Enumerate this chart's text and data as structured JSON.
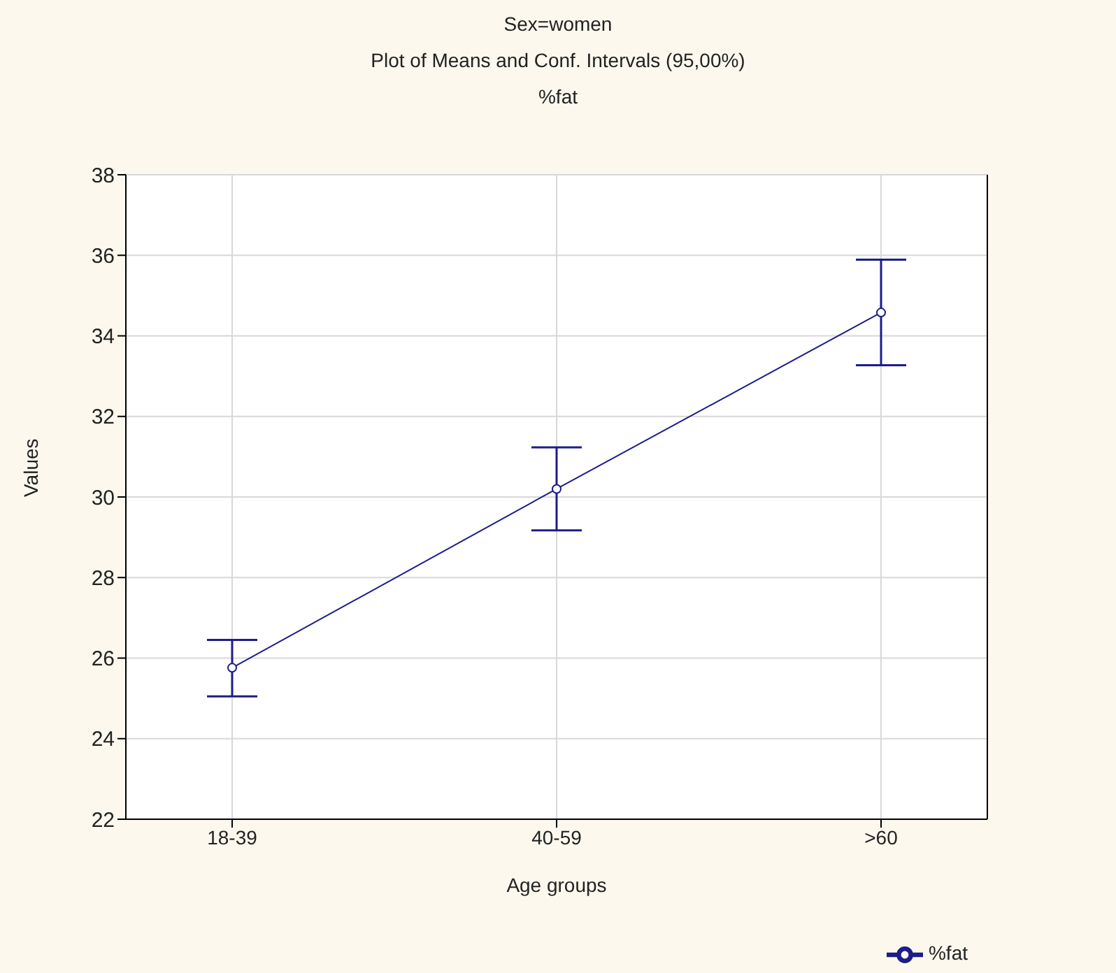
{
  "chart_data": {
    "type": "line",
    "title": "Sex=women",
    "subtitle": "Plot of Means and Conf. Intervals (95,00%)\n%fat",
    "xlabel": "Age groups",
    "ylabel": "Values",
    "categories": [
      "18-39",
      "40-59",
      ">60"
    ],
    "series": [
      {
        "name": "%fat",
        "color": "#1c1c8a",
        "values": [
          25.76,
          30.2,
          34.58
        ],
        "errors": [
          [
            25.05,
            26.45
          ],
          [
            29.17,
            31.23
          ],
          [
            33.27,
            35.89
          ]
        ]
      }
    ],
    "ylim": [
      22,
      38
    ],
    "yticks": [
      22,
      24,
      26,
      28,
      30,
      32,
      34,
      36,
      38
    ],
    "grid": true,
    "legend": "bottom right",
    "marker": "circle",
    "line_style": "solid"
  }
}
